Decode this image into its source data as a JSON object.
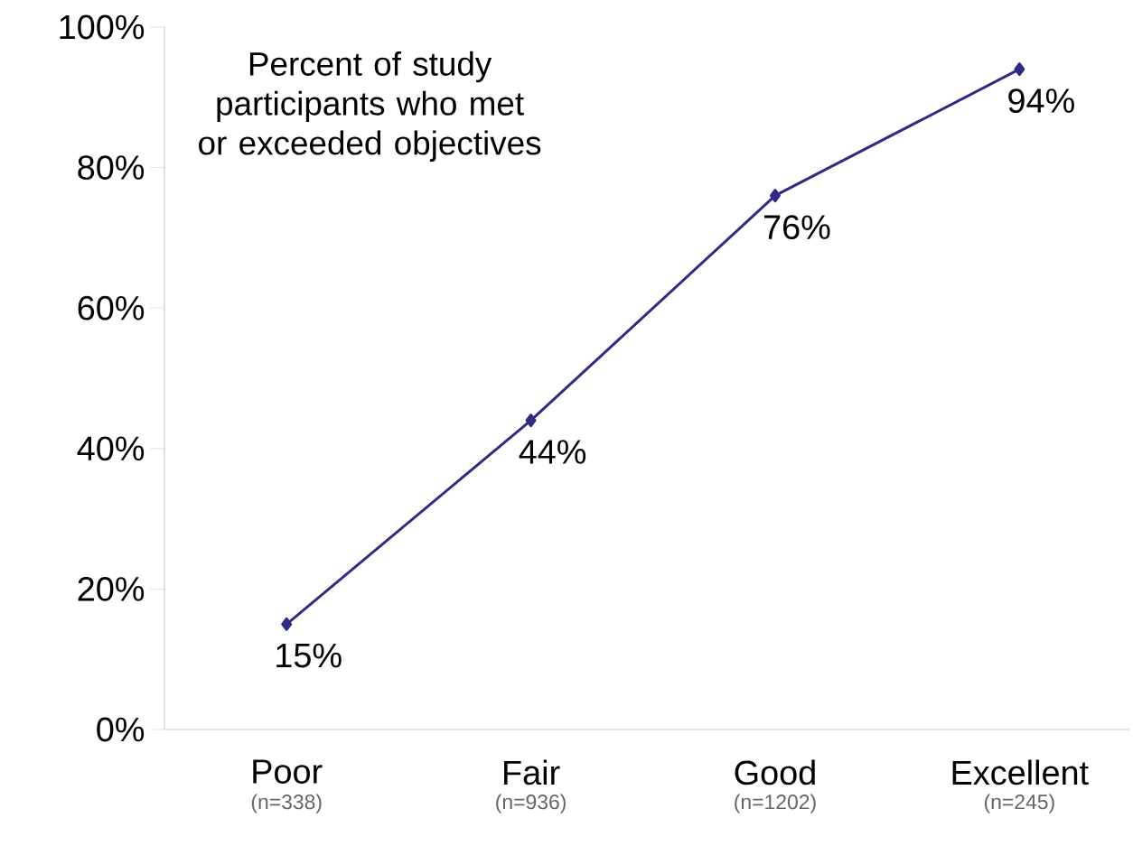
{
  "chart_data": {
    "type": "line",
    "title": "Percent of study participants who met or exceeded objectives",
    "categories": [
      "Poor",
      "Fair",
      "Good",
      "Excellent"
    ],
    "values": [
      15,
      44,
      76,
      94
    ],
    "value_labels": [
      "15%",
      "44%",
      "76%",
      "94%"
    ],
    "color": "#2e2a86",
    "marker": "diamond",
    "grid": false,
    "ylim": [
      0,
      100
    ],
    "yticks": [
      {
        "value": 0,
        "label": "0%"
      },
      {
        "value": 20,
        "label": "20%"
      },
      {
        "value": 40,
        "label": "40%"
      },
      {
        "value": 60,
        "label": "60%"
      },
      {
        "value": 80,
        "label": "80%"
      },
      {
        "value": 100,
        "label": "100%"
      }
    ],
    "annotations": [
      "(n=338)",
      "(n=936)",
      "(n=1202)",
      "(n=245)"
    ]
  }
}
